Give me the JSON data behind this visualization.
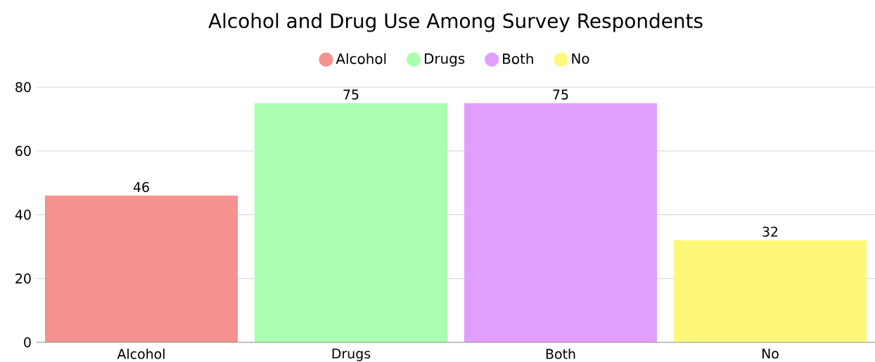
{
  "chart_data": {
    "type": "bar",
    "title": "Alcohol and Drug Use Among Survey Respondents",
    "categories": [
      "Alcohol",
      "Drugs",
      "Both",
      "No"
    ],
    "series": [
      {
        "name": "Alcohol",
        "color": "#f4928e",
        "values": [
          46,
          null,
          null,
          null
        ]
      },
      {
        "name": "Drugs",
        "color": "#abffb0",
        "values": [
          null,
          75,
          null,
          null
        ]
      },
      {
        "name": "Both",
        "color": "#e09ffd",
        "values": [
          null,
          null,
          75,
          null
        ]
      },
      {
        "name": "No",
        "color": "#fef87a",
        "values": [
          null,
          null,
          null,
          32
        ]
      }
    ],
    "ylim": [
      0,
      80
    ],
    "yticks": [
      0,
      20,
      40,
      60,
      80
    ],
    "grid": "y",
    "legend": "top",
    "data_labels": true
  }
}
